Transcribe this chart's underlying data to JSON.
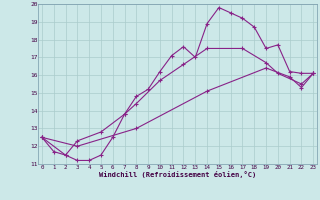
{
  "xlabel": "Windchill (Refroidissement éolien,°C)",
  "background_color": "#cce8e8",
  "grid_color": "#aacccc",
  "line_color": "#882288",
  "xmin": 0,
  "xmax": 23,
  "ymin": 11,
  "ymax": 20,
  "line1_x": [
    0,
    1,
    2,
    3,
    4,
    5,
    6,
    7,
    8,
    9,
    10,
    11,
    12,
    13,
    14,
    15,
    16,
    17,
    18,
    19,
    20,
    21,
    22,
    23
  ],
  "line1_y": [
    12.5,
    11.7,
    11.5,
    11.2,
    11.2,
    11.5,
    12.5,
    13.8,
    14.8,
    15.2,
    16.2,
    17.1,
    17.6,
    17.0,
    18.9,
    19.8,
    19.5,
    19.2,
    18.7,
    17.5,
    17.7,
    16.2,
    16.1,
    16.1
  ],
  "line2_x": [
    0,
    2,
    3,
    5,
    7,
    8,
    10,
    12,
    14,
    17,
    19,
    20,
    22,
    23
  ],
  "line2_y": [
    12.5,
    11.5,
    12.3,
    12.8,
    13.8,
    14.4,
    15.7,
    16.6,
    17.5,
    17.5,
    16.7,
    16.1,
    15.5,
    16.1
  ],
  "line3_x": [
    0,
    3,
    8,
    14,
    19,
    21,
    22,
    23
  ],
  "line3_y": [
    12.5,
    12.0,
    13.0,
    15.1,
    16.4,
    15.9,
    15.3,
    16.1
  ]
}
